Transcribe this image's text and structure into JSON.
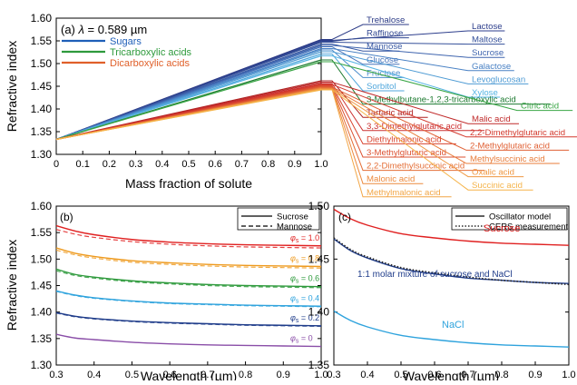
{
  "chart_data": [
    {
      "panel": "(a)",
      "type": "line",
      "title": "(a) λ = 0.589 µm",
      "title_prefix": "(a) ",
      "title_lambda": "λ",
      "title_rest": " = 0.589 µm",
      "xlabel": "Mass fraction of solute",
      "ylabel": "Refractive index",
      "xlim": [
        0,
        1.0
      ],
      "ylim": [
        1.3,
        1.6
      ],
      "x_ticks": [
        "0",
        "0.1",
        "0.2",
        "0.3",
        "0.4",
        "0.5",
        "0.6",
        "0.7",
        "0.8",
        "0.9",
        "1.0"
      ],
      "y_ticks": [
        "1.30",
        "1.35",
        "1.40",
        "1.45",
        "1.50",
        "1.55",
        "1.60"
      ],
      "x": [
        0,
        1.0
      ],
      "legend": [
        {
          "label": "Sugars",
          "color": "#1f5fb8"
        },
        {
          "label": "Tricarboxylic acids",
          "color": "#2e9a3c"
        },
        {
          "label": "Dicarboxylic acids",
          "color": "#e0602a"
        }
      ],
      "series": [
        {
          "name": "Trehalose",
          "color": "#2b3a86",
          "values": [
            1.333,
            1.553
          ]
        },
        {
          "name": "Lactose",
          "color": "#2d3e8c",
          "values": [
            1.333,
            1.551
          ]
        },
        {
          "name": "Raffinose",
          "color": "#324892",
          "values": [
            1.333,
            1.549
          ]
        },
        {
          "name": "Maltose",
          "color": "#35509a",
          "values": [
            1.333,
            1.547
          ]
        },
        {
          "name": "Mannose",
          "color": "#3a5aa4",
          "values": [
            1.333,
            1.543
          ]
        },
        {
          "name": "Sucrose",
          "color": "#3e64ae",
          "values": [
            1.333,
            1.54
          ]
        },
        {
          "name": "Glucose",
          "color": "#4472ba",
          "values": [
            1.333,
            1.537
          ]
        },
        {
          "name": "Galactose",
          "color": "#4880c4",
          "values": [
            1.333,
            1.533
          ]
        },
        {
          "name": "Fructose",
          "color": "#4c8ecc",
          "values": [
            1.333,
            1.53
          ]
        },
        {
          "name": "Levoglucosan",
          "color": "#4e9bd4",
          "values": [
            1.333,
            1.526
          ]
        },
        {
          "name": "Sorbitol",
          "color": "#50a7dc",
          "values": [
            1.333,
            1.521
          ]
        },
        {
          "name": "Xylose",
          "color": "#56b4e4",
          "values": [
            1.333,
            1.517
          ]
        },
        {
          "name": "3-Methylbutane-1,2,3-tricarboxylic acid",
          "color": "#1d7a30",
          "values": [
            1.333,
            1.508
          ]
        },
        {
          "name": "Citric acid",
          "color": "#3aa645",
          "values": [
            1.333,
            1.504
          ]
        },
        {
          "name": "Tartaric acid",
          "color": "#b02323",
          "values": [
            1.333,
            1.462
          ]
        },
        {
          "name": "Malic acid",
          "color": "#c02a2a",
          "values": [
            1.333,
            1.459
          ]
        },
        {
          "name": "3,3-Dimethylglutaric acid",
          "color": "#cc3030",
          "values": [
            1.333,
            1.456
          ]
        },
        {
          "name": "2,2-Dimethylglutaric acid",
          "color": "#d33a2e",
          "values": [
            1.333,
            1.454
          ]
        },
        {
          "name": "Diethylmalonic acid",
          "color": "#d84430",
          "values": [
            1.333,
            1.452
          ]
        },
        {
          "name": "3-Methylglutaric acid",
          "color": "#dc5232",
          "values": [
            1.333,
            1.45
          ]
        },
        {
          "name": "2-Methylglutaric acid",
          "color": "#e06034",
          "values": [
            1.333,
            1.448
          ]
        },
        {
          "name": "2,2-Dimethylsuccinic acid",
          "color": "#e46e36",
          "values": [
            1.333,
            1.447
          ]
        },
        {
          "name": "Methylsuccinic acid",
          "color": "#e87c3a",
          "values": [
            1.333,
            1.446
          ]
        },
        {
          "name": "Malonic acid",
          "color": "#ec8a3e",
          "values": [
            1.333,
            1.445
          ]
        },
        {
          "name": "Oxalic acid",
          "color": "#ef9842",
          "values": [
            1.333,
            1.444
          ]
        },
        {
          "name": "Methylmalonic acid",
          "color": "#f2a646",
          "values": [
            1.333,
            1.443
          ]
        },
        {
          "name": "Succinic acid",
          "color": "#f5b44a",
          "values": [
            1.333,
            1.442
          ]
        }
      ],
      "label_rows": [
        [
          "Trehalose",
          "Lactose"
        ],
        [
          "Raffinose",
          "Maltose"
        ],
        [
          "Mannose",
          "Sucrose"
        ],
        [
          "Glucose",
          "Galactose"
        ],
        [
          "Fructose",
          "Levoglucosan"
        ],
        [
          "Sorbitol",
          "Xylose"
        ],
        [
          "3-Methylbutane-1,2,3-tricarboxylic acid",
          "Citric acid"
        ],
        [
          "Tartaric acid",
          "Malic acid"
        ],
        [
          "3,3-Dimethylglutaric acid",
          "2,2-Dimethylglutaric acid"
        ],
        [
          "Diethylmalonic acid",
          "2-Methylglutaric acid"
        ],
        [
          "3-Methylglutaric acid",
          "Methylsuccinic acid"
        ],
        [
          "2,2-Dimethylsuccinic acid",
          "Oxalic acid"
        ],
        [
          "Malonic acid",
          "Succinic acid"
        ],
        [
          "Methylmalonic acid",
          ""
        ]
      ]
    },
    {
      "panel": "(b)",
      "type": "line",
      "title": "(b)",
      "xlabel": "Wavelength (µm)",
      "ylabel": "Refractive index",
      "xlim": [
        0.3,
        1.0
      ],
      "ylim": [
        1.3,
        1.6
      ],
      "x_ticks": [
        "0.3",
        "0.4",
        "0.5",
        "0.6",
        "0.7",
        "0.8",
        "0.9",
        "1.0"
      ],
      "y_ticks": [
        "1.30",
        "1.35",
        "1.40",
        "1.45",
        "1.50",
        "1.55",
        "1.60"
      ],
      "legend": [
        {
          "label": "Sucrose",
          "style": "solid"
        },
        {
          "label": "Mannose",
          "style": "dashed"
        }
      ],
      "phi_symbol": "φ",
      "phi_sub": "s",
      "x": [
        0.3,
        0.35,
        0.4,
        0.5,
        0.6,
        0.7,
        0.8,
        0.9,
        1.0
      ],
      "series": [
        {
          "name": "φs = 1.0",
          "value_label": " = 1.0",
          "color": "#e02020",
          "sucrose": [
            1.563,
            1.553,
            1.546,
            1.537,
            1.532,
            1.529,
            1.527,
            1.526,
            1.525
          ],
          "mannose": [
            1.556,
            1.547,
            1.541,
            1.533,
            1.528,
            1.525,
            1.523,
            1.522,
            1.521
          ]
        },
        {
          "name": "φs = 0.8",
          "value_label": " = 0.8",
          "color": "#ee9a1e",
          "sucrose": [
            1.521,
            1.511,
            1.505,
            1.497,
            1.493,
            1.49,
            1.488,
            1.487,
            1.486
          ],
          "mannose": [
            1.517,
            1.508,
            1.502,
            1.494,
            1.49,
            1.487,
            1.485,
            1.484,
            1.483
          ]
        },
        {
          "name": "φs = 0.6",
          "value_label": " = 0.6",
          "color": "#2e9a3c",
          "sucrose": [
            1.481,
            1.471,
            1.466,
            1.459,
            1.455,
            1.452,
            1.45,
            1.449,
            1.448
          ],
          "mannose": [
            1.478,
            1.469,
            1.464,
            1.457,
            1.453,
            1.45,
            1.448,
            1.447,
            1.446
          ]
        },
        {
          "name": "φs = 0.4",
          "value_label": " = 0.4",
          "color": "#2fa3dd",
          "sucrose": [
            1.44,
            1.432,
            1.427,
            1.421,
            1.417,
            1.415,
            1.413,
            1.412,
            1.411
          ],
          "mannose": [
            1.439,
            1.431,
            1.426,
            1.42,
            1.416,
            1.414,
            1.412,
            1.411,
            1.41
          ]
        },
        {
          "name": "φs = 0.2",
          "value_label": " = 0.2",
          "color": "#1f3c8a",
          "sucrose": [
            1.399,
            1.392,
            1.388,
            1.383,
            1.38,
            1.378,
            1.376,
            1.375,
            1.374
          ],
          "mannose": [
            1.398,
            1.391,
            1.387,
            1.382,
            1.379,
            1.377,
            1.375,
            1.374,
            1.373
          ]
        },
        {
          "name": "φs = 0",
          "value_label": " = 0",
          "color": "#8a4ea8",
          "sucrose": [
            1.358,
            1.351,
            1.348,
            1.343,
            1.34,
            1.338,
            1.337,
            1.336,
            1.335
          ]
        }
      ]
    },
    {
      "panel": "(c)",
      "type": "line",
      "title": "(c)",
      "xlabel": "Wavelength (µm)",
      "ylabel": "",
      "xlim": [
        0.3,
        1.0
      ],
      "ylim": [
        1.35,
        1.5
      ],
      "x_ticks": [
        "0.3",
        "0.4",
        "0.5",
        "0.6",
        "0.7",
        "0.8",
        "0.9",
        "1.0"
      ],
      "y_ticks": [
        "1.35",
        "1.40",
        "1.45",
        "1.50"
      ],
      "legend": [
        {
          "label": "Oscillator model",
          "style": "solid"
        },
        {
          "label": "CERS measurement",
          "style": "dotted"
        }
      ],
      "x": [
        0.3,
        0.35,
        0.4,
        0.5,
        0.6,
        0.7,
        0.8,
        0.9,
        1.0
      ],
      "series": [
        {
          "name": "Sucrose",
          "color": "#e02020",
          "style": "solid",
          "values": [
            1.497,
            1.488,
            1.482,
            1.474,
            1.47,
            1.467,
            1.465,
            1.464,
            1.463
          ]
        },
        {
          "name": "1:1 molar mixture of sucrose and NaCl",
          "color": "#1f3c8a",
          "style": "solid",
          "values": [
            1.469,
            1.458,
            1.451,
            1.441,
            1.436,
            1.432,
            1.43,
            1.428,
            1.427
          ]
        },
        {
          "name": "CERS measurement",
          "color": "#222222",
          "style": "dotted",
          "values": [
            1.47,
            1.459,
            1.452,
            1.442,
            1.437,
            1.433,
            1.43,
            1.428,
            1.426
          ]
        },
        {
          "name": "NaCl",
          "color": "#2fa3dd",
          "style": "solid",
          "values": [
            1.401,
            1.392,
            1.386,
            1.378,
            1.374,
            1.371,
            1.369,
            1.368,
            1.367
          ]
        }
      ],
      "annotations": [
        {
          "text": "Sucrose",
          "color": "#e02020"
        },
        {
          "text": "1:1 molar mixture of sucrose and NaCl",
          "color": "#1f3c8a"
        },
        {
          "text": "NaCl",
          "color": "#2fa3dd"
        }
      ]
    }
  ]
}
